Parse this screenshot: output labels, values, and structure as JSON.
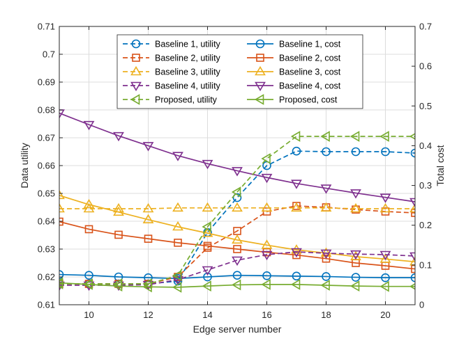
{
  "chart_data": {
    "type": "line",
    "title": "",
    "xlabel": "Edge server number",
    "ylabel_left": "Data utility",
    "ylabel_right": "Total cost",
    "xlim": [
      9,
      21
    ],
    "ylim_left": [
      0.61,
      0.71
    ],
    "ylim_right": [
      0,
      0.7
    ],
    "xticks": [
      10,
      12,
      14,
      16,
      18,
      20
    ],
    "yticks_left": [
      "0.61",
      "0.62",
      "0.63",
      "0.64",
      "0.65",
      "0.66",
      "0.67",
      "0.68",
      "0.69",
      "0.7",
      "0.71"
    ],
    "yticks_right": [
      "0",
      "0.1",
      "0.2",
      "0.3",
      "0.4",
      "0.5",
      "0.6",
      "0.7"
    ],
    "grid": true,
    "legend_position": "top-center",
    "x": [
      9,
      10,
      11,
      12,
      13,
      14,
      15,
      16,
      17,
      18,
      19,
      20,
      21
    ],
    "series": [
      {
        "name": "Baseline 1, utility",
        "axis": "left",
        "style": "dashed",
        "marker": "circle",
        "color": "#0072BD",
        "values": [
          0.6175,
          0.6175,
          0.6175,
          0.6175,
          0.6185,
          0.636,
          0.6485,
          0.66,
          0.6652,
          0.665,
          0.665,
          0.665,
          0.6645
        ]
      },
      {
        "name": "Baseline 1, cost",
        "axis": "right",
        "style": "solid",
        "marker": "circle",
        "color": "#0072BD",
        "values": [
          0.076,
          0.074,
          0.07,
          0.068,
          0.066,
          0.07,
          0.074,
          0.073,
          0.072,
          0.071,
          0.069,
          0.068,
          0.068
        ]
      },
      {
        "name": "Baseline 2, utility",
        "axis": "left",
        "style": "dashed",
        "marker": "square",
        "color": "#D95319",
        "values": [
          0.6175,
          0.6175,
          0.6175,
          0.6175,
          0.62,
          0.6305,
          0.6365,
          0.6435,
          0.6455,
          0.645,
          0.6442,
          0.6435,
          0.643
        ]
      },
      {
        "name": "Baseline 2, cost",
        "axis": "right",
        "style": "solid",
        "marker": "square",
        "color": "#D95319",
        "values": [
          0.209,
          0.19,
          0.176,
          0.166,
          0.156,
          0.148,
          0.14,
          0.132,
          0.125,
          0.116,
          0.105,
          0.098,
          0.09
        ]
      },
      {
        "name": "Baseline 3, utility",
        "axis": "left",
        "style": "dashed",
        "marker": "triangle-up",
        "color": "#EDB120",
        "values": [
          0.6445,
          0.6445,
          0.6445,
          0.6445,
          0.6448,
          0.6448,
          0.6448,
          0.6448,
          0.6448,
          0.6448,
          0.6445,
          0.6445,
          0.6445
        ]
      },
      {
        "name": "Baseline 3, cost",
        "axis": "right",
        "style": "solid",
        "marker": "triangle-up",
        "color": "#EDB120",
        "values": [
          0.275,
          0.252,
          0.233,
          0.214,
          0.196,
          0.18,
          0.163,
          0.15,
          0.138,
          0.13,
          0.121,
          0.115,
          0.108
        ]
      },
      {
        "name": "Baseline 4, utility",
        "axis": "left",
        "style": "dashed",
        "marker": "triangle-down",
        "color": "#7E2F8E",
        "values": [
          0.617,
          0.617,
          0.617,
          0.6172,
          0.619,
          0.6225,
          0.626,
          0.628,
          0.629,
          0.6285,
          0.6282,
          0.628,
          0.6275
        ]
      },
      {
        "name": "Baseline 4, cost",
        "axis": "right",
        "style": "solid",
        "marker": "triangle-down",
        "color": "#7E2F8E",
        "values": [
          0.482,
          0.453,
          0.425,
          0.4,
          0.375,
          0.355,
          0.337,
          0.32,
          0.305,
          0.293,
          0.281,
          0.27,
          0.259
        ]
      },
      {
        "name": "Proposed, utility",
        "axis": "left",
        "style": "dashed",
        "marker": "triangle-left",
        "color": "#77AC30",
        "values": [
          0.6175,
          0.6175,
          0.6175,
          0.6175,
          0.6205,
          0.638,
          0.6505,
          0.6625,
          0.6705,
          0.6705,
          0.6705,
          0.6705,
          0.6705
        ]
      },
      {
        "name": "Proposed, cost",
        "axis": "right",
        "style": "solid",
        "marker": "triangle-left",
        "color": "#77AC30",
        "values": [
          0.055,
          0.051,
          0.047,
          0.045,
          0.044,
          0.047,
          0.05,
          0.051,
          0.051,
          0.049,
          0.047,
          0.046,
          0.046
        ]
      }
    ],
    "marker_every": 1,
    "legend_order": [
      "Baseline 1, utility",
      "Baseline 1, cost",
      "Baseline 2, utility",
      "Baseline 2, cost",
      "Baseline 3, utility",
      "Baseline 3, cost",
      "Baseline 4, utility",
      "Baseline 4, cost",
      "Proposed, utility",
      "Proposed, cost"
    ]
  }
}
